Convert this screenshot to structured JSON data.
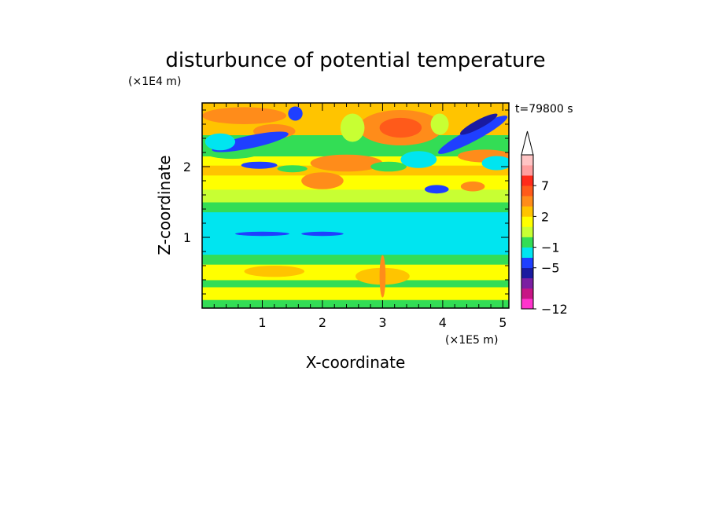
{
  "chart_data": {
    "type": "heatmap",
    "title": "disturbunce of potential temperature",
    "xlabel": "X-coordinate",
    "ylabel": "Z-coordinate",
    "x_scale_label": "(×1E5 m)",
    "y_scale_label": "(×1E4 m)",
    "time_label": "t=79800 s",
    "xlim": [
      0,
      5.1
    ],
    "ylim": [
      0,
      2.9
    ],
    "x_ticks": [
      "1",
      "2",
      "3",
      "4",
      "5"
    ],
    "y_ticks": [
      "1",
      "2"
    ],
    "grid": false,
    "colorbar": {
      "placement": "right",
      "extend_top": true,
      "labels": [
        {
          "value": 7,
          "text": "7"
        },
        {
          "value": 2,
          "text": "2"
        },
        {
          "value": -1,
          "text": "−1"
        },
        {
          "value": -5,
          "text": "−5"
        },
        {
          "value": -12,
          "text": "−12"
        }
      ],
      "levels": [
        {
          "color": "#ff33cc"
        },
        {
          "color": "#c71585"
        },
        {
          "color": "#7b1fa2"
        },
        {
          "color": "#1a1aa0"
        },
        {
          "color": "#1f3fff"
        },
        {
          "color": "#00e5f0"
        },
        {
          "color": "#33dd55"
        },
        {
          "color": "#c8ff33"
        },
        {
          "color": "#ffff00"
        },
        {
          "color": "#ffc400"
        },
        {
          "color": "#ff8c1a"
        },
        {
          "color": "#ff5a1a"
        },
        {
          "color": "#ff2a1a"
        },
        {
          "color": "#ff9e9e"
        },
        {
          "color": "#ffc4c4"
        }
      ]
    },
    "bands": [
      {
        "z0": 0.0,
        "z1": 0.12,
        "level": 6
      },
      {
        "z0": 0.12,
        "z1": 0.3,
        "level": 8
      },
      {
        "z0": 0.3,
        "z1": 0.4,
        "level": 6
      },
      {
        "z0": 0.4,
        "z1": 0.62,
        "level": 8
      },
      {
        "z0": 0.62,
        "z1": 0.76,
        "level": 6
      },
      {
        "z0": 0.76,
        "z1": 1.36,
        "level": 5
      },
      {
        "z0": 1.36,
        "z1": 1.5,
        "level": 6
      },
      {
        "z0": 1.5,
        "z1": 1.68,
        "level": 7
      },
      {
        "z0": 1.68,
        "z1": 1.88,
        "level": 8
      },
      {
        "z0": 1.88,
        "z1": 2.02,
        "level": 9
      },
      {
        "z0": 2.02,
        "z1": 2.15,
        "level": 8
      },
      {
        "z0": 2.15,
        "z1": 2.45,
        "level": 6
      },
      {
        "z0": 2.45,
        "z1": 2.9,
        "level": 9
      }
    ],
    "features": [
      {
        "shape": "ellipse",
        "x": 3.0,
        "z": 0.45,
        "rx": 0.45,
        "rz": 0.12,
        "level": 9
      },
      {
        "shape": "ellipse",
        "x": 1.2,
        "z": 0.52,
        "rx": 0.5,
        "rz": 0.08,
        "level": 9
      },
      {
        "shape": "ellipse",
        "x": 3.0,
        "z": 0.45,
        "rx": 0.05,
        "rz": 0.3,
        "level": 10
      },
      {
        "shape": "ellipse",
        "x": 1.0,
        "z": 1.05,
        "rx": 0.45,
        "rz": 0.03,
        "level": 4
      },
      {
        "shape": "ellipse",
        "x": 2.0,
        "z": 1.05,
        "rx": 0.35,
        "rz": 0.03,
        "level": 4
      },
      {
        "shape": "ellipse",
        "x": 4.7,
        "z": 2.15,
        "rx": 0.45,
        "rz": 0.09,
        "level": 10
      },
      {
        "shape": "ellipse",
        "x": 2.4,
        "z": 2.05,
        "rx": 0.6,
        "rz": 0.12,
        "level": 10
      },
      {
        "shape": "ellipse",
        "x": 3.3,
        "z": 2.55,
        "rx": 0.7,
        "rz": 0.25,
        "level": 10
      },
      {
        "shape": "ellipse",
        "x": 3.3,
        "z": 2.55,
        "rx": 0.35,
        "rz": 0.14,
        "level": 11
      },
      {
        "shape": "ellipse",
        "x": 0.7,
        "z": 2.72,
        "rx": 0.7,
        "rz": 0.12,
        "level": 10
      },
      {
        "shape": "ellipse",
        "x": 1.2,
        "z": 2.5,
        "rx": 0.35,
        "rz": 0.1,
        "level": 10
      },
      {
        "shape": "ellipse",
        "x": 0.5,
        "z": 2.25,
        "rx": 0.55,
        "rz": 0.14,
        "level": 6
      },
      {
        "shape": "ellipse",
        "x": 0.8,
        "z": 2.35,
        "rx": 0.65,
        "rz": 0.09,
        "level": 4,
        "rotate": -12
      },
      {
        "shape": "ellipse",
        "x": 4.5,
        "z": 2.45,
        "rx": 0.65,
        "rz": 0.09,
        "level": 4,
        "rotate": -28
      },
      {
        "shape": "ellipse",
        "x": 4.6,
        "z": 2.6,
        "rx": 0.35,
        "rz": 0.06,
        "level": 3,
        "rotate": -28
      },
      {
        "shape": "ellipse",
        "x": 1.55,
        "z": 2.75,
        "rx": 0.12,
        "rz": 0.1,
        "level": 4
      },
      {
        "shape": "ellipse",
        "x": 0.95,
        "z": 2.02,
        "rx": 0.3,
        "rz": 0.05,
        "level": 4
      },
      {
        "shape": "ellipse",
        "x": 1.5,
        "z": 1.97,
        "rx": 0.25,
        "rz": 0.05,
        "level": 6
      },
      {
        "shape": "ellipse",
        "x": 3.1,
        "z": 2.0,
        "rx": 0.3,
        "rz": 0.07,
        "level": 6
      },
      {
        "shape": "ellipse",
        "x": 3.9,
        "z": 1.68,
        "rx": 0.2,
        "rz": 0.06,
        "level": 4
      },
      {
        "shape": "ellipse",
        "x": 3.6,
        "z": 2.1,
        "rx": 0.3,
        "rz": 0.12,
        "level": 5
      },
      {
        "shape": "ellipse",
        "x": 4.9,
        "z": 2.05,
        "rx": 0.25,
        "rz": 0.1,
        "level": 5
      },
      {
        "shape": "ellipse",
        "x": 0.3,
        "z": 2.35,
        "rx": 0.25,
        "rz": 0.12,
        "level": 5
      },
      {
        "shape": "ellipse",
        "x": 2.5,
        "z": 2.55,
        "rx": 0.2,
        "rz": 0.2,
        "level": 7
      },
      {
        "shape": "ellipse",
        "x": 3.95,
        "z": 2.6,
        "rx": 0.15,
        "rz": 0.15,
        "level": 7
      },
      {
        "shape": "ellipse",
        "x": 2.0,
        "z": 1.8,
        "rx": 0.35,
        "rz": 0.12,
        "level": 10
      },
      {
        "shape": "ellipse",
        "x": 4.5,
        "z": 1.72,
        "rx": 0.2,
        "rz": 0.07,
        "level": 10
      }
    ]
  }
}
